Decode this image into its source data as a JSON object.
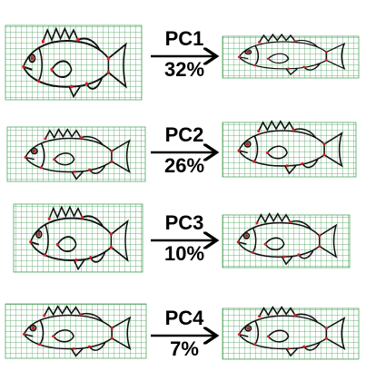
{
  "panels": [
    {
      "label": "PC1",
      "variance": "32%"
    },
    {
      "label": "PC2",
      "variance": "26%"
    },
    {
      "label": "PC3",
      "variance": "10%"
    },
    {
      "label": "PC4",
      "variance": "7%"
    }
  ]
}
